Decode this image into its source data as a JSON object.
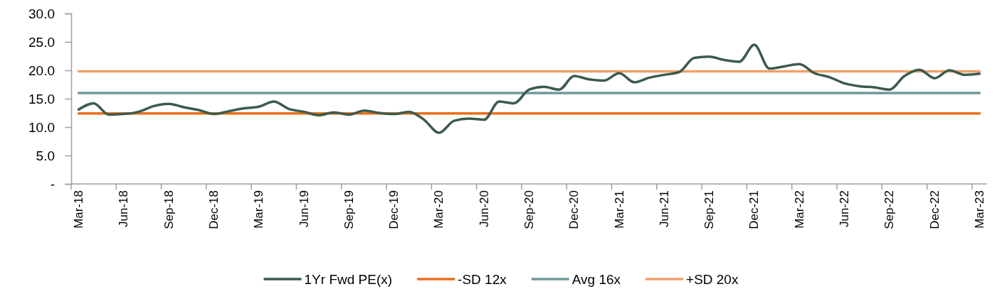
{
  "chart_data": {
    "type": "line",
    "categories": [
      "Mar-18",
      null,
      null,
      "Jun-18",
      null,
      null,
      "Sep-18",
      null,
      null,
      "Dec-18",
      null,
      null,
      "Mar-19",
      null,
      null,
      "Jun-19",
      null,
      null,
      "Sep-19",
      null,
      null,
      "Dec-19",
      null,
      null,
      "Mar-20",
      null,
      null,
      "Jun-20",
      null,
      null,
      "Sep-20",
      null,
      null,
      "Dec-20",
      null,
      null,
      "Mar-21",
      null,
      null,
      "Jun-21",
      null,
      null,
      "Sep-21",
      null,
      null,
      "Dec-21",
      null,
      null,
      "Mar-22",
      null,
      null,
      "Jun-22",
      null,
      null,
      "Sep-22",
      null,
      null,
      "Dec-22",
      null,
      null,
      "Mar-23"
    ],
    "series": [
      {
        "name": "1Yr Fwd PE(x)",
        "color": "#3b5b4d",
        "values": [
          13.1,
          14.2,
          12.2,
          12.3,
          12.7,
          13.7,
          14.1,
          13.5,
          13.0,
          12.3,
          12.8,
          13.3,
          13.6,
          14.5,
          13.2,
          12.7,
          12.1,
          12.6,
          12.2,
          12.9,
          12.5,
          12.3,
          12.7,
          11.3,
          9.0,
          11.1,
          11.5,
          11.3,
          14.5,
          14.2,
          16.6,
          17.1,
          16.6,
          19.0,
          18.4,
          18.2,
          19.5,
          17.9,
          18.7,
          19.2,
          19.7,
          22.2,
          22.4,
          21.8,
          21.5,
          24.5,
          20.3,
          20.7,
          21.1,
          19.5,
          18.8,
          17.7,
          17.2,
          17.0,
          16.6,
          19.0,
          20.1,
          18.6,
          20.0,
          19.2,
          19.4
        ]
      },
      {
        "name": "-SD 12x",
        "color": "#e8701a",
        "values": [
          12.4,
          12.4,
          12.4,
          12.4,
          12.4,
          12.4,
          12.4,
          12.4,
          12.4,
          12.4,
          12.4,
          12.4,
          12.4,
          12.4,
          12.4,
          12.4,
          12.4,
          12.4,
          12.4,
          12.4,
          12.4,
          12.4,
          12.4,
          12.4,
          12.4,
          12.4,
          12.4,
          12.4,
          12.4,
          12.4,
          12.4,
          12.4,
          12.4,
          12.4,
          12.4,
          12.4,
          12.4,
          12.4,
          12.4,
          12.4,
          12.4,
          12.4,
          12.4,
          12.4,
          12.4,
          12.4,
          12.4,
          12.4,
          12.4,
          12.4,
          12.4,
          12.4,
          12.4,
          12.4,
          12.4,
          12.4,
          12.4,
          12.4,
          12.4,
          12.4,
          12.4
        ]
      },
      {
        "name": "Avg 16x",
        "color": "#6f9a99",
        "values": [
          16.0,
          16.0,
          16.0,
          16.0,
          16.0,
          16.0,
          16.0,
          16.0,
          16.0,
          16.0,
          16.0,
          16.0,
          16.0,
          16.0,
          16.0,
          16.0,
          16.0,
          16.0,
          16.0,
          16.0,
          16.0,
          16.0,
          16.0,
          16.0,
          16.0,
          16.0,
          16.0,
          16.0,
          16.0,
          16.0,
          16.0,
          16.0,
          16.0,
          16.0,
          16.0,
          16.0,
          16.0,
          16.0,
          16.0,
          16.0,
          16.0,
          16.0,
          16.0,
          16.0,
          16.0,
          16.0,
          16.0,
          16.0,
          16.0,
          16.0,
          16.0,
          16.0,
          16.0,
          16.0,
          16.0,
          16.0,
          16.0,
          16.0,
          16.0,
          16.0,
          16.0
        ]
      },
      {
        "name": "+SD 20x",
        "color": "#f0a06c",
        "values": [
          19.8,
          19.8,
          19.8,
          19.8,
          19.8,
          19.8,
          19.8,
          19.8,
          19.8,
          19.8,
          19.8,
          19.8,
          19.8,
          19.8,
          19.8,
          19.8,
          19.8,
          19.8,
          19.8,
          19.8,
          19.8,
          19.8,
          19.8,
          19.8,
          19.8,
          19.8,
          19.8,
          19.8,
          19.8,
          19.8,
          19.8,
          19.8,
          19.8,
          19.8,
          19.8,
          19.8,
          19.8,
          19.8,
          19.8,
          19.8,
          19.8,
          19.8,
          19.8,
          19.8,
          19.8,
          19.8,
          19.8,
          19.8,
          19.8,
          19.8,
          19.8,
          19.8,
          19.8,
          19.8,
          19.8,
          19.8,
          19.8,
          19.8,
          19.8,
          19.8,
          19.8
        ]
      }
    ],
    "ylim": [
      0,
      30
    ],
    "yticks": [
      {
        "value": 0,
        "label": "-"
      },
      {
        "value": 5,
        "label": "5.0"
      },
      {
        "value": 10,
        "label": "10.0"
      },
      {
        "value": 15,
        "label": "15.0"
      },
      {
        "value": 20,
        "label": "20.0"
      },
      {
        "value": 25,
        "label": "25.0"
      },
      {
        "value": 30,
        "label": "30.0"
      }
    ],
    "legend": "bottom"
  }
}
